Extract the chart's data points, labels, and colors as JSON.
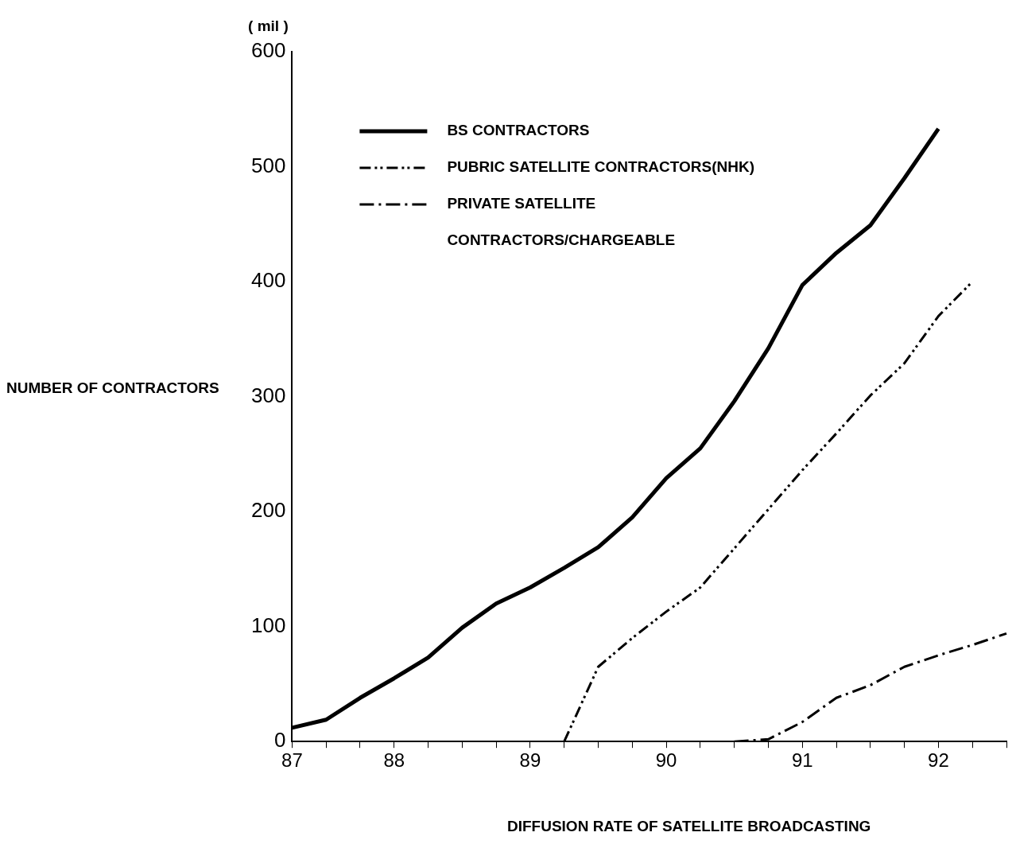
{
  "chart_data": {
    "type": "line",
    "xlabel": "DIFFUSION RATE OF SATELLITE BROADCASTING",
    "ylabel": "NUMBER OF CONTRACTORS",
    "annotations": [
      "( mil )"
    ],
    "categories": [
      "87",
      null,
      null,
      "88",
      null,
      null,
      null,
      "89",
      null,
      null,
      null,
      "90",
      null,
      null,
      null,
      "91",
      null,
      null,
      null,
      "92",
      null,
      null
    ],
    "ylim": [
      0,
      600
    ],
    "yticks": [
      0,
      100,
      200,
      300,
      400,
      500,
      600
    ],
    "grid": false,
    "legend": "top left",
    "marker": "none",
    "series": [
      {
        "name": "BS CONTRACTORS",
        "color": "#000000",
        "line_style": "solid",
        "values": [
          12,
          19,
          38,
          55,
          73,
          99,
          120,
          134,
          151,
          169,
          195,
          229,
          255,
          296,
          342,
          397,
          425,
          449,
          490,
          533,
          null,
          null
        ]
      },
      {
        "name": "PUBRIC SATELLITE CONTRACTORS(NHK)",
        "color": "#000000",
        "line_style": "dotted",
        "values": [
          null,
          null,
          null,
          null,
          null,
          null,
          null,
          null,
          0,
          65,
          90,
          113,
          134,
          168,
          202,
          236,
          268,
          301,
          329,
          370,
          400,
          null
        ]
      },
      {
        "name": "PRIVATE SATELLITE CONTRACTORS/CHARGEABLE",
        "color": "#000000",
        "line_style": "dashed",
        "values": [
          null,
          null,
          null,
          null,
          null,
          null,
          null,
          null,
          null,
          null,
          null,
          null,
          null,
          0,
          2,
          17,
          38,
          49,
          65,
          75,
          84,
          94
        ]
      }
    ]
  }
}
